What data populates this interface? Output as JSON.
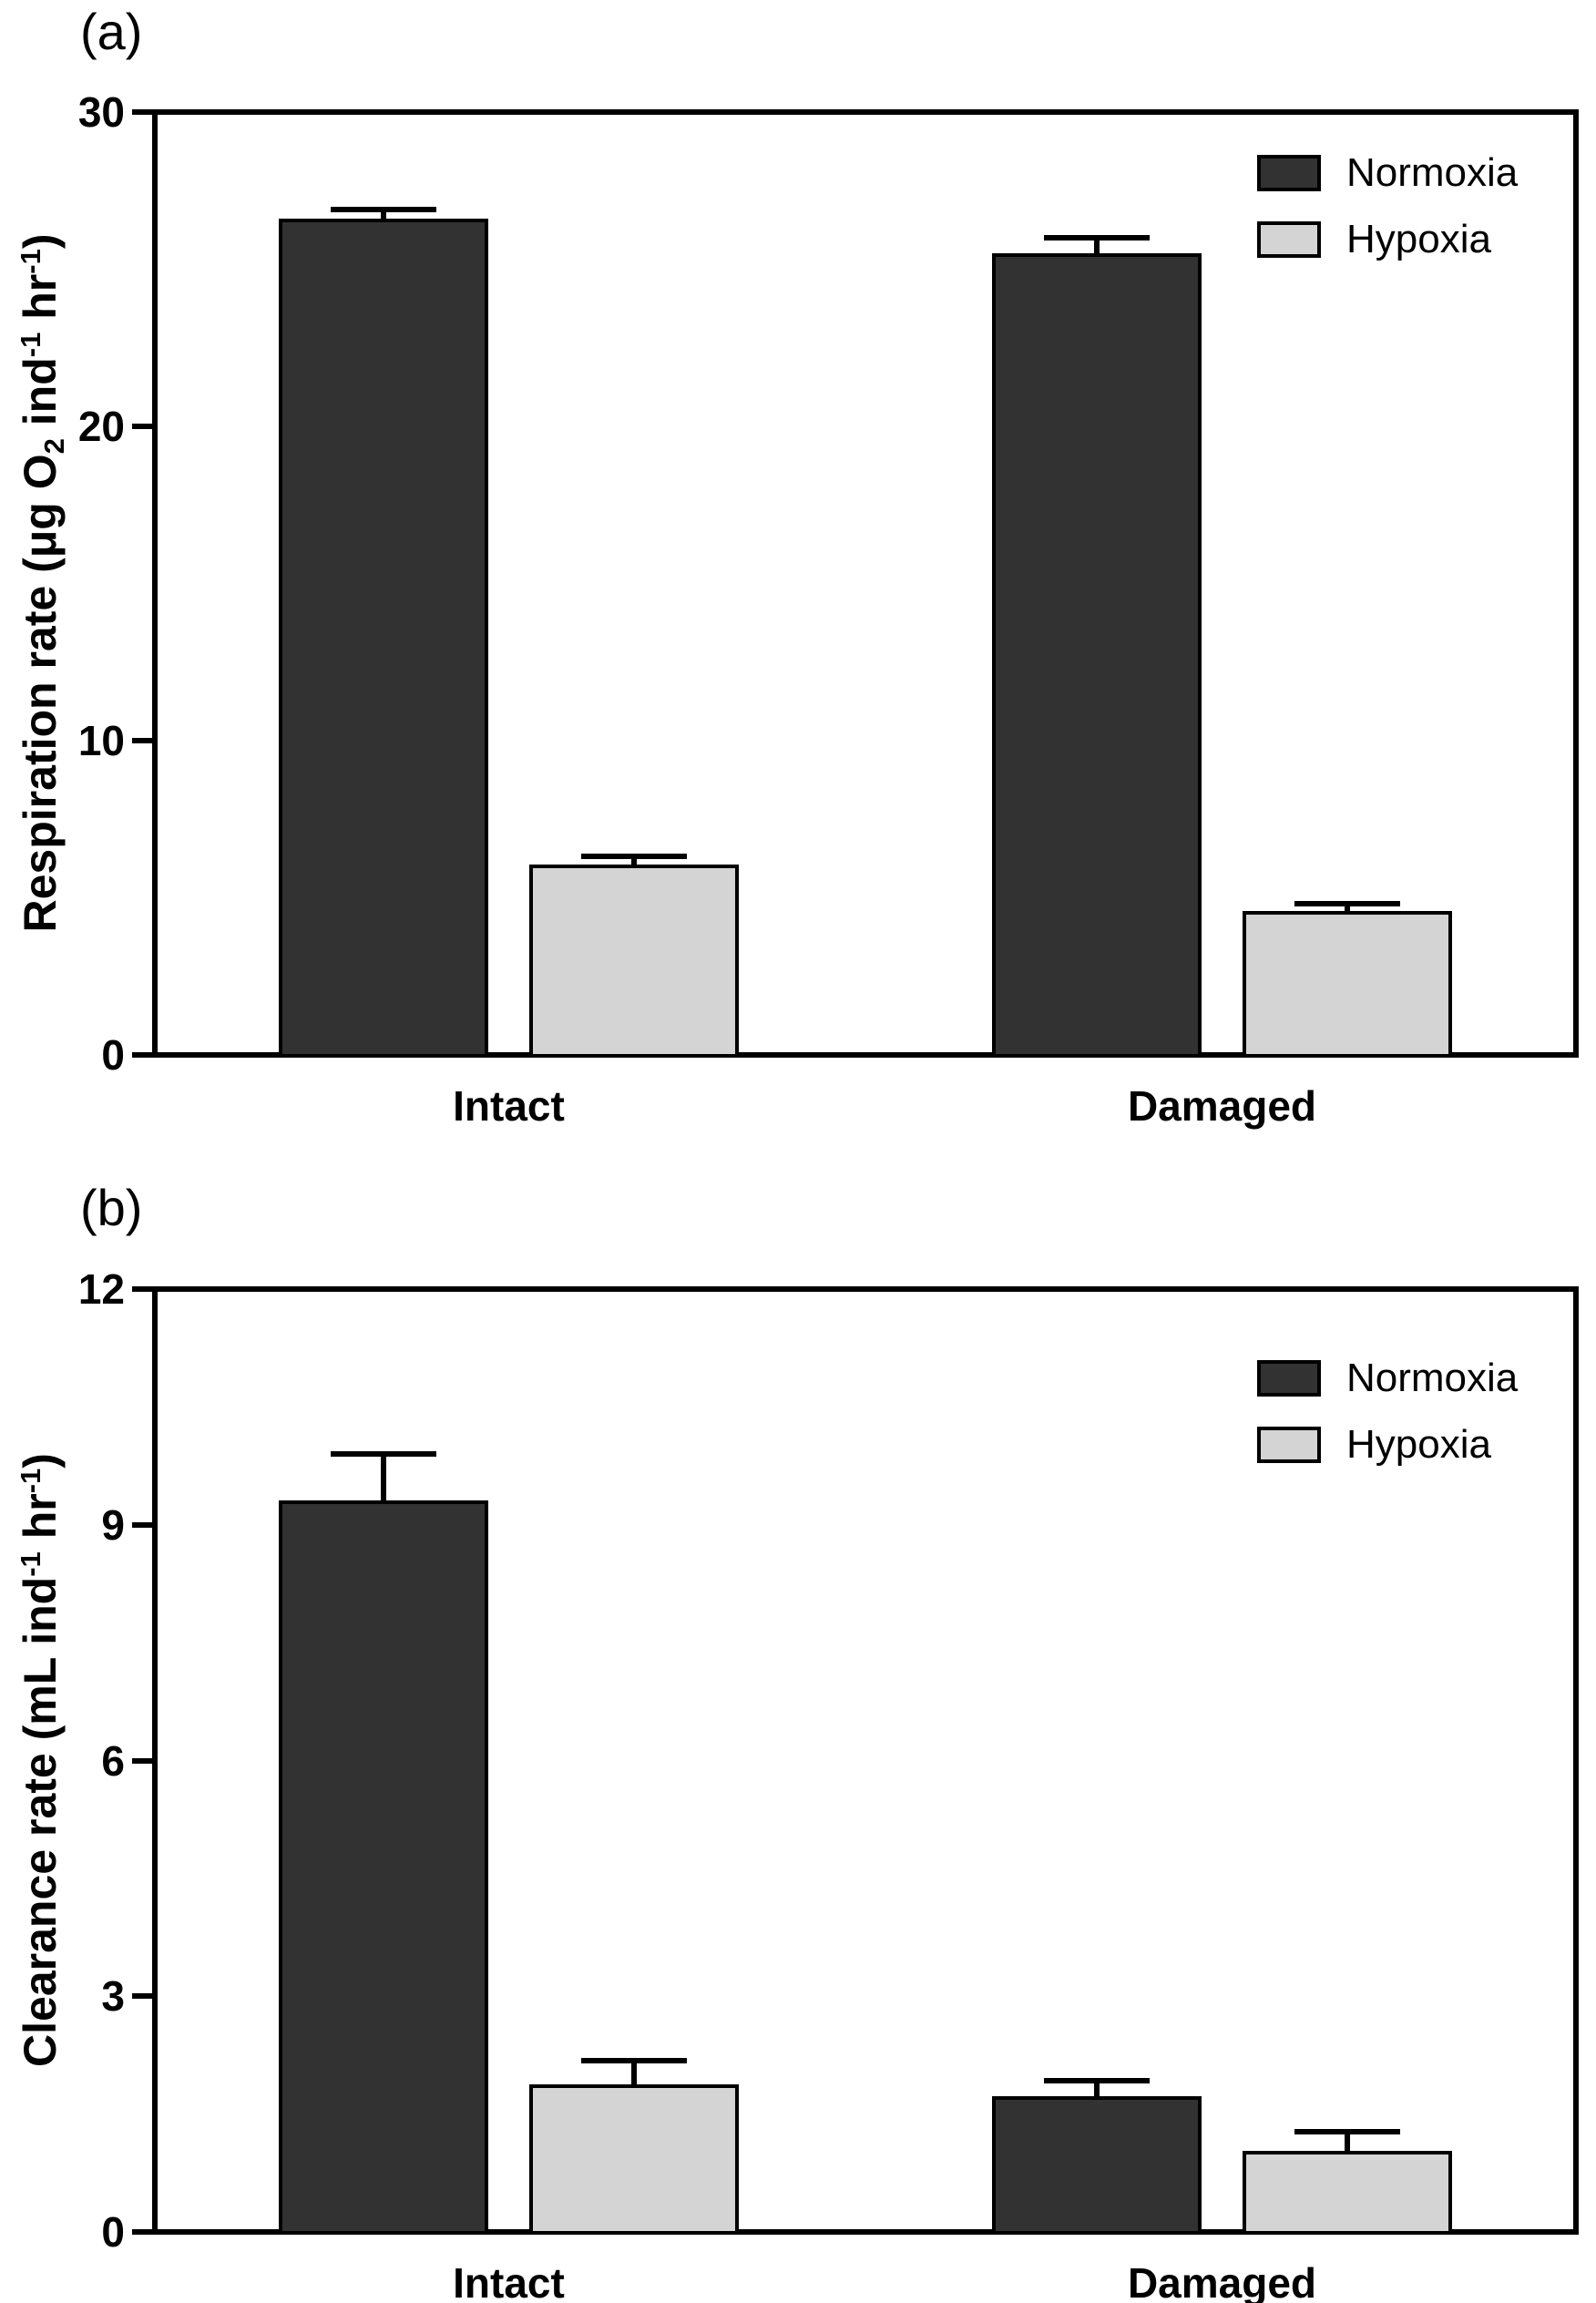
{
  "colors": {
    "normoxia_fill": "#323232",
    "hypoxia_fill": "#d4d4d4",
    "bar_border": "#000000",
    "axis": "#000000",
    "background": "#ffffff"
  },
  "chart_data": [
    {
      "panel_label": "(a)",
      "type": "bar",
      "title": "",
      "ylabel": "Respiration rate (μg O2 ind-1 hr-1)",
      "ylabel_segments": [
        {
          "t": "Respiration rate (μg O"
        },
        {
          "t": "2",
          "s": "sub"
        },
        {
          "t": " ind"
        },
        {
          "t": "-1",
          "s": "sup"
        },
        {
          "t": " hr"
        },
        {
          "t": "-1",
          "s": "sup"
        },
        {
          "t": ")"
        }
      ],
      "xlabel": "",
      "ylim": [
        0,
        30
      ],
      "yticks": [
        0,
        10,
        20,
        30
      ],
      "grid": false,
      "legend_position": "top-right",
      "categories": [
        "Intact",
        "Damaged"
      ],
      "series": [
        {
          "name": "Normoxia",
          "fill": "#323232",
          "values": [
            26.6,
            25.5
          ],
          "errors_plus": [
            0.3,
            0.5
          ]
        },
        {
          "name": "Hypoxia",
          "fill": "#d4d4d4",
          "values": [
            6.0,
            4.5
          ],
          "errors_plus": [
            0.25,
            0.25
          ]
        }
      ]
    },
    {
      "panel_label": "(b)",
      "type": "bar",
      "title": "",
      "ylabel": "Clearance rate (mL ind-1 hr-1)",
      "ylabel_segments": [
        {
          "t": "Clearance rate (mL ind"
        },
        {
          "t": "-1",
          "s": "sup"
        },
        {
          "t": " hr"
        },
        {
          "t": "-1",
          "s": "sup"
        },
        {
          "t": ")"
        }
      ],
      "xlabel": "",
      "ylim": [
        0,
        12
      ],
      "yticks": [
        0,
        3,
        6,
        9,
        12
      ],
      "grid": false,
      "legend_position": "top-right",
      "categories": [
        "Intact",
        "Damaged"
      ],
      "series": [
        {
          "name": "Normoxia",
          "fill": "#323232",
          "values": [
            9.3,
            1.7
          ],
          "errors_plus": [
            0.6,
            0.2
          ]
        },
        {
          "name": "Hypoxia",
          "fill": "#d4d4d4",
          "values": [
            1.85,
            1.0
          ],
          "errors_plus": [
            0.3,
            0.25
          ]
        }
      ]
    }
  ]
}
